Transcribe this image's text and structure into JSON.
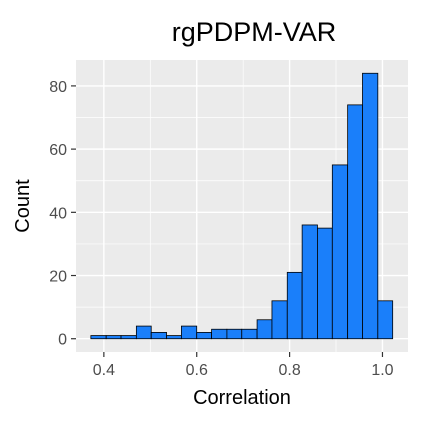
{
  "chart_data": {
    "type": "histogram",
    "title": "rgPDPM-VAR",
    "xlabel": "Correlation",
    "ylabel": "Count",
    "bin_width": 0.0325,
    "bins": [
      {
        "x0": 0.372,
        "x1": 0.405,
        "count": 1
      },
      {
        "x0": 0.405,
        "x1": 0.437,
        "count": 1
      },
      {
        "x0": 0.437,
        "x1": 0.47,
        "count": 1
      },
      {
        "x0": 0.47,
        "x1": 0.502,
        "count": 4
      },
      {
        "x0": 0.502,
        "x1": 0.535,
        "count": 2
      },
      {
        "x0": 0.535,
        "x1": 0.567,
        "count": 1
      },
      {
        "x0": 0.567,
        "x1": 0.6,
        "count": 4
      },
      {
        "x0": 0.6,
        "x1": 0.632,
        "count": 2
      },
      {
        "x0": 0.632,
        "x1": 0.665,
        "count": 3
      },
      {
        "x0": 0.665,
        "x1": 0.697,
        "count": 3
      },
      {
        "x0": 0.697,
        "x1": 0.73,
        "count": 3
      },
      {
        "x0": 0.73,
        "x1": 0.762,
        "count": 6
      },
      {
        "x0": 0.762,
        "x1": 0.795,
        "count": 12
      },
      {
        "x0": 0.795,
        "x1": 0.827,
        "count": 21
      },
      {
        "x0": 0.827,
        "x1": 0.86,
        "count": 36
      },
      {
        "x0": 0.86,
        "x1": 0.892,
        "count": 35
      },
      {
        "x0": 0.892,
        "x1": 0.925,
        "count": 55
      },
      {
        "x0": 0.925,
        "x1": 0.957,
        "count": 74
      },
      {
        "x0": 0.957,
        "x1": 0.99,
        "count": 84
      },
      {
        "x0": 0.99,
        "x1": 1.022,
        "count": 12
      }
    ],
    "xlim": [
      0.34,
      1.055
    ],
    "ylim": [
      -4.2,
      88.2
    ],
    "xticks": [
      0.4,
      0.6,
      0.8,
      1.0
    ],
    "xtick_labels": [
      "0.4",
      "0.6",
      "0.8",
      "1.0"
    ],
    "yticks": [
      0,
      20,
      40,
      60,
      80
    ],
    "ytick_labels": [
      "0",
      "20",
      "40",
      "60",
      "80"
    ],
    "grid": true,
    "legend": "none",
    "colors": {
      "bar_fill": "#1a7ffa",
      "bar_outline": "#000000",
      "panel_background": "#ebebeb",
      "grid": "#ffffff",
      "tick_label": "#4d4d4d"
    }
  }
}
